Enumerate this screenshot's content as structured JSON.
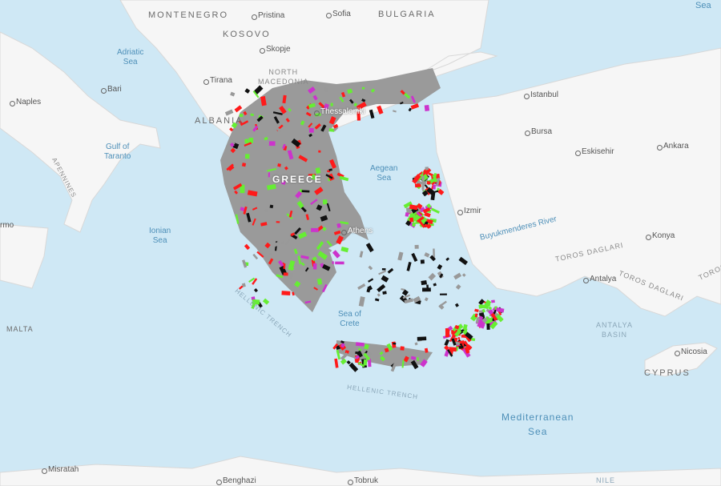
{
  "map": {
    "countries": [
      "MONTENEGRO",
      "BULGARIA",
      "KOSOVO",
      "NORTH",
      "MACEDONIA",
      "ALBANIA",
      "GREECE",
      "MALTA",
      "CYPRUS"
    ],
    "cities": [
      "Pristina",
      "Sofia",
      "Skopje",
      "Tirana",
      "Bari",
      "Naples",
      "Istanbul",
      "Thessaloniki",
      "Bursa",
      "Eskisehir",
      "Ankara",
      "Izmir",
      "Athens",
      "Konya",
      "Antalya",
      "Nicosia",
      "Misratah",
      "Benghazi",
      "Tobruk",
      "rmo"
    ],
    "seas": {
      "adriatic": [
        "Adriatic",
        "Sea"
      ],
      "taranto": [
        "Gulf of",
        "Taranto"
      ],
      "aegean": [
        "Aegean",
        "Sea"
      ],
      "ionian": [
        "Ionian",
        "Sea"
      ],
      "crete": [
        "Sea of",
        "Crete"
      ],
      "mediterranean": [
        "Mediterranean",
        "Sea"
      ],
      "top_right": "Sea"
    },
    "features": {
      "apennines": "APENNINES",
      "river": "Buyukmenderes River",
      "toros1": "TOROS DAGLARI",
      "toros2": "TOROS DAGLARI",
      "toros3": "TOROS",
      "trench1": "HELLENIC TRENCH",
      "trench2": "HELLENIC TRENCH",
      "basin": [
        "ANTALYA",
        "BASIN"
      ],
      "nile": "NILE"
    },
    "overlay_colors": {
      "red": "#ff1a1a",
      "green": "#66ee33",
      "gray": "#999999",
      "black": "#111111",
      "magenta": "#cc33cc"
    },
    "land_color": "#f7f7f7",
    "water_color": "#cfe8f5"
  }
}
